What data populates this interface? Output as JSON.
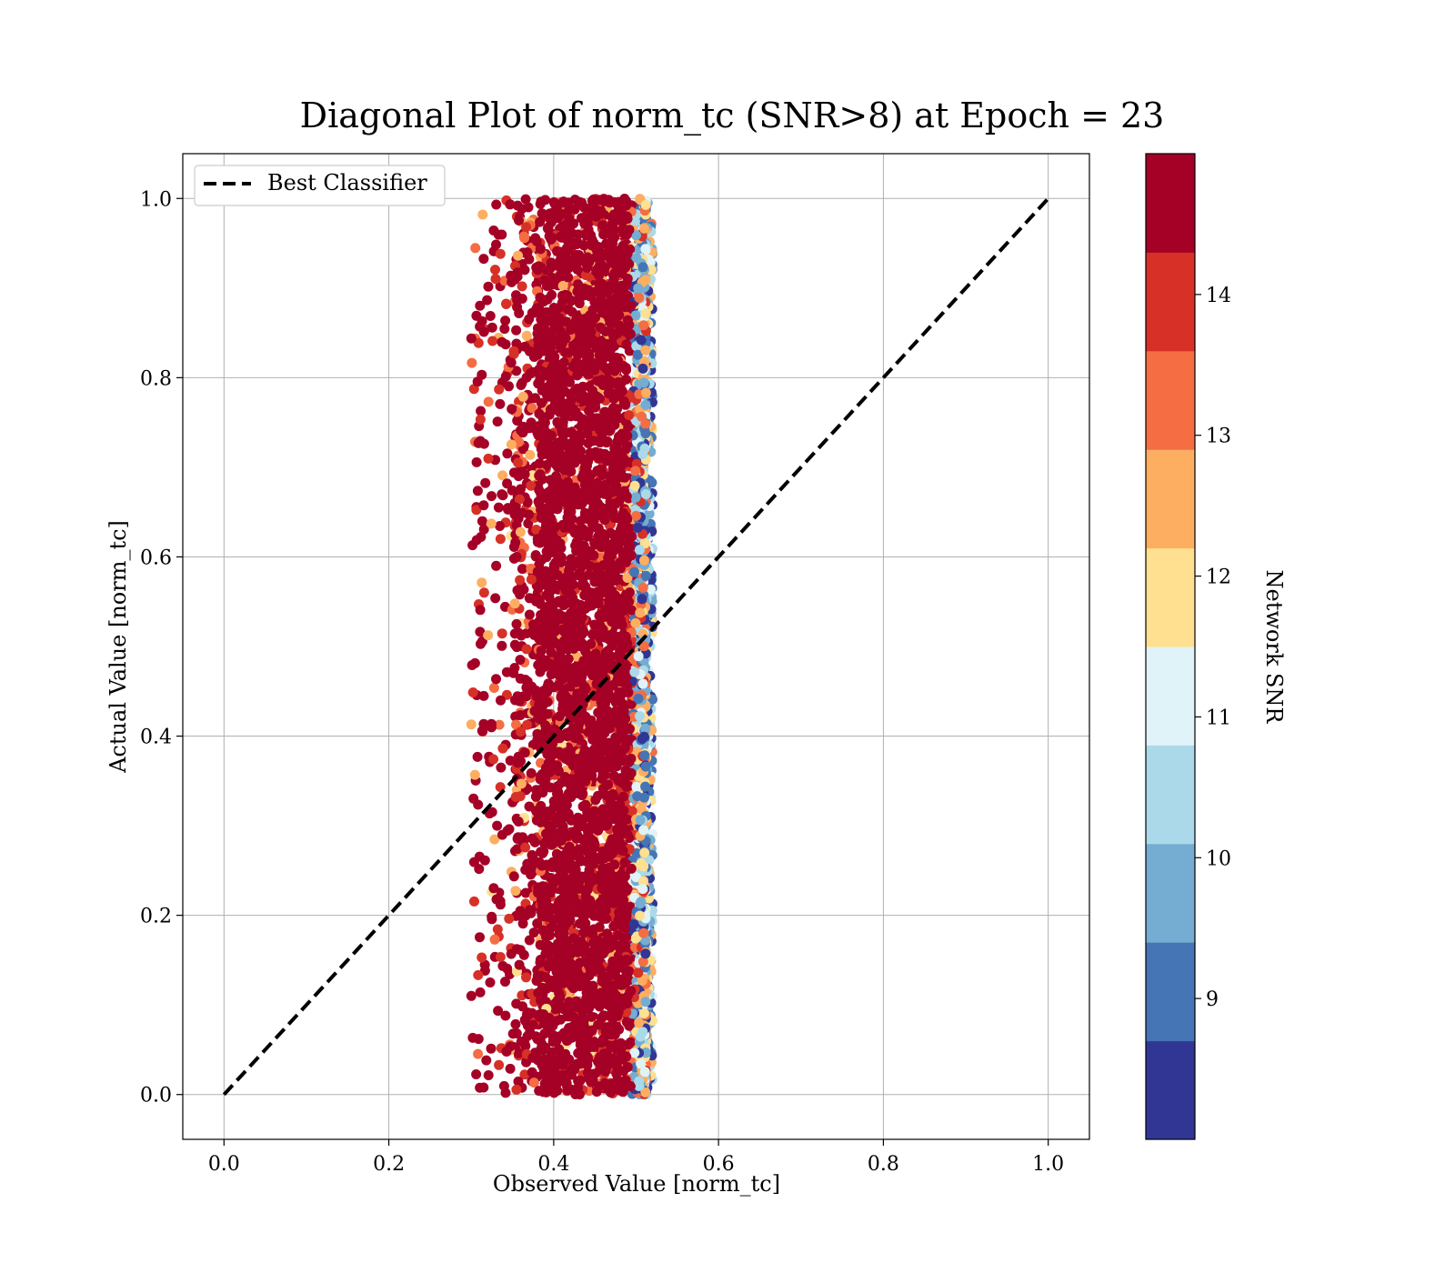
{
  "chart_data": {
    "type": "scatter",
    "title": "Diagonal Plot of norm_tc (SNR>8) at Epoch = 23",
    "xlabel": "Observed Value [norm_tc]",
    "ylabel": "Actual Value [norm_tc]",
    "xlim": [
      -0.05,
      1.05
    ],
    "ylim": [
      -0.05,
      1.05
    ],
    "xticks": [
      0.0,
      0.2,
      0.4,
      0.6,
      0.8,
      1.0
    ],
    "yticks": [
      0.0,
      0.2,
      0.4,
      0.6,
      0.8,
      1.0
    ],
    "xtick_labels": [
      "0.0",
      "0.2",
      "0.4",
      "0.6",
      "0.8",
      "1.0"
    ],
    "ytick_labels": [
      "0.0",
      "0.2",
      "0.4",
      "0.6",
      "0.8",
      "1.0"
    ],
    "grid": true,
    "legend": {
      "placement": "upper-left",
      "entries": [
        "Best Classifier"
      ]
    },
    "reference_line": {
      "name": "Best Classifier",
      "style": "dashed",
      "color": "#000000",
      "x": [
        0.0,
        1.0
      ],
      "y": [
        0.0,
        1.0
      ]
    },
    "scatter_description": {
      "x_range": [
        0.3,
        0.52
      ],
      "dense_x_range": [
        0.36,
        0.5
      ],
      "y_range": [
        0.0,
        1.0
      ],
      "color_by": "Network SNR"
    },
    "colorbar": {
      "label": "Network SNR",
      "range": [
        8.0,
        15.0
      ],
      "tick_values": [
        9,
        10,
        11,
        12,
        13,
        14
      ],
      "tick_labels": [
        "9",
        "10",
        "11",
        "12",
        "13",
        "14"
      ],
      "colors": [
        "#313695",
        "#4575b4",
        "#74add1",
        "#abd9e9",
        "#e0f3f8",
        "#fee090",
        "#fdae61",
        "#f46d43",
        "#d73027",
        "#a50026"
      ]
    }
  }
}
